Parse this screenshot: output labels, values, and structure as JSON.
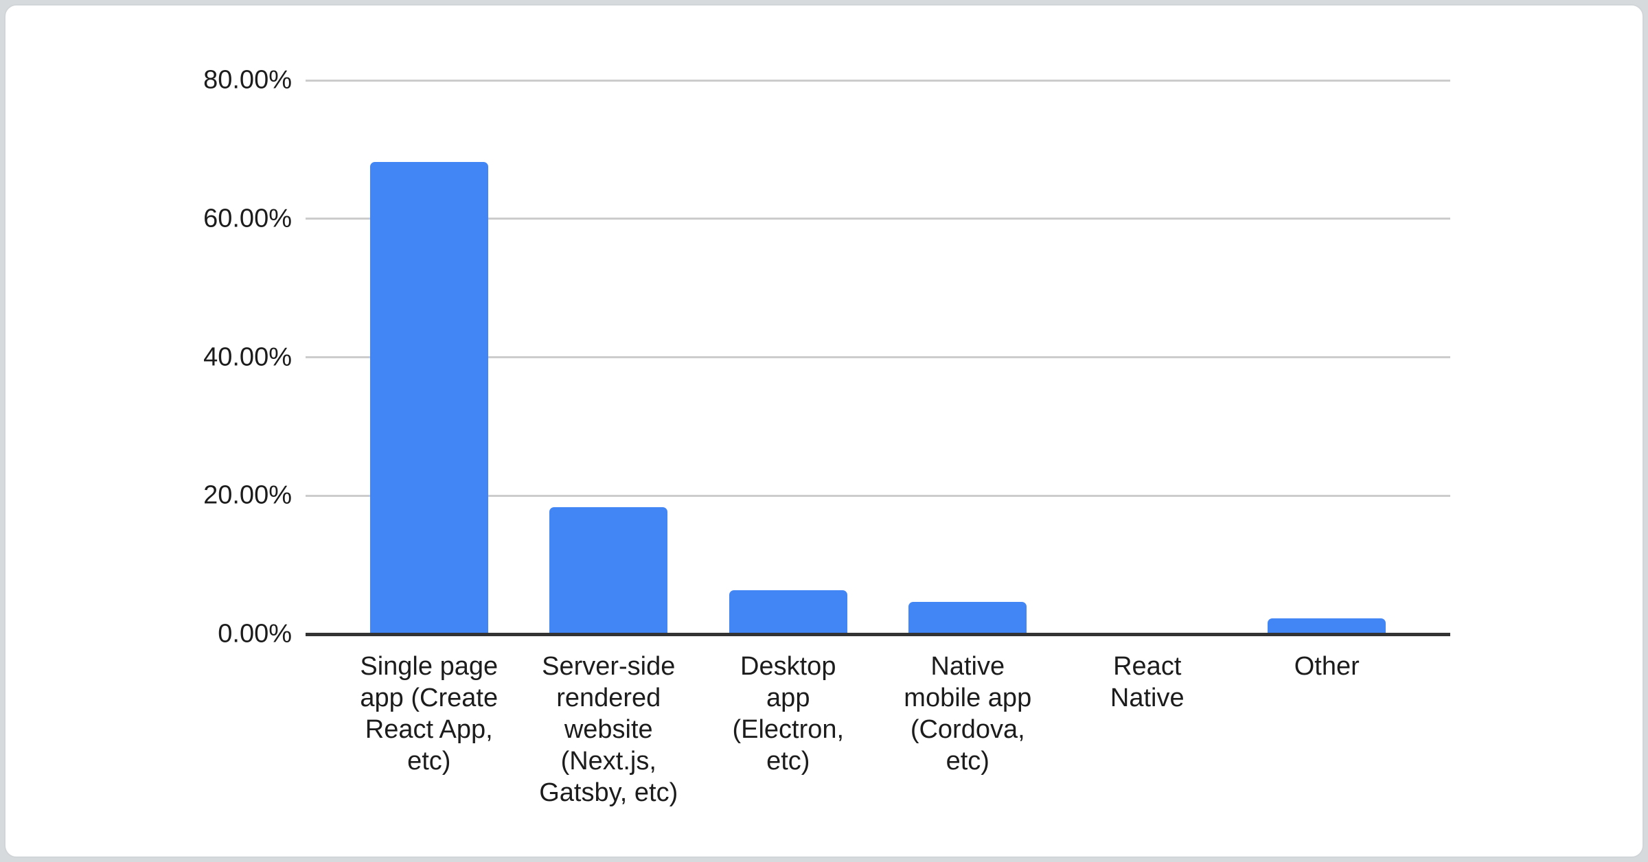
{
  "colors": {
    "page_background": "#d7dadd",
    "card_background": "#ffffff",
    "card_border": "#d2d5d8",
    "bar": "#4285f4",
    "gridline": "#cccccc",
    "axis_line": "#333333",
    "text": "#1c1c1c"
  },
  "chart_data": {
    "type": "bar",
    "title": "",
    "xlabel": "",
    "ylabel": "",
    "legend": "none",
    "grid": true,
    "ylim": [
      0,
      80
    ],
    "value_unit": "%",
    "categories": [
      "Single page app (Create React App, etc)",
      "Server-side rendered website (Next.js, Gatsby, etc)",
      "Desktop app (Electron, etc)",
      "Native mobile app (Cordova, etc)",
      "React Native",
      "Other"
    ],
    "category_wrapped_labels": [
      "Single page\napp (Create\nReact App,\netc)",
      "Server-side\nrendered\nwebsite\n(Next.js,\nGatsby, etc)",
      "Desktop\napp\n(Electron,\netc)",
      "Native\nmobile app\n(Cordova,\netc)",
      "React\nNative",
      "Other"
    ],
    "category_slugs": [
      "single-page-app",
      "server-side-rendered-website",
      "desktop-app",
      "native-mobile-app",
      "react-native",
      "other"
    ],
    "values": [
      68.2,
      18.3,
      6.3,
      4.7,
      0,
      2.3
    ],
    "y_ticks": [
      {
        "value": 80,
        "label": "80.00%"
      },
      {
        "value": 60,
        "label": "60.00%"
      },
      {
        "value": 40,
        "label": "40.00%"
      },
      {
        "value": 20,
        "label": "20.00%"
      },
      {
        "value": 0,
        "label": "0.00%"
      }
    ]
  }
}
